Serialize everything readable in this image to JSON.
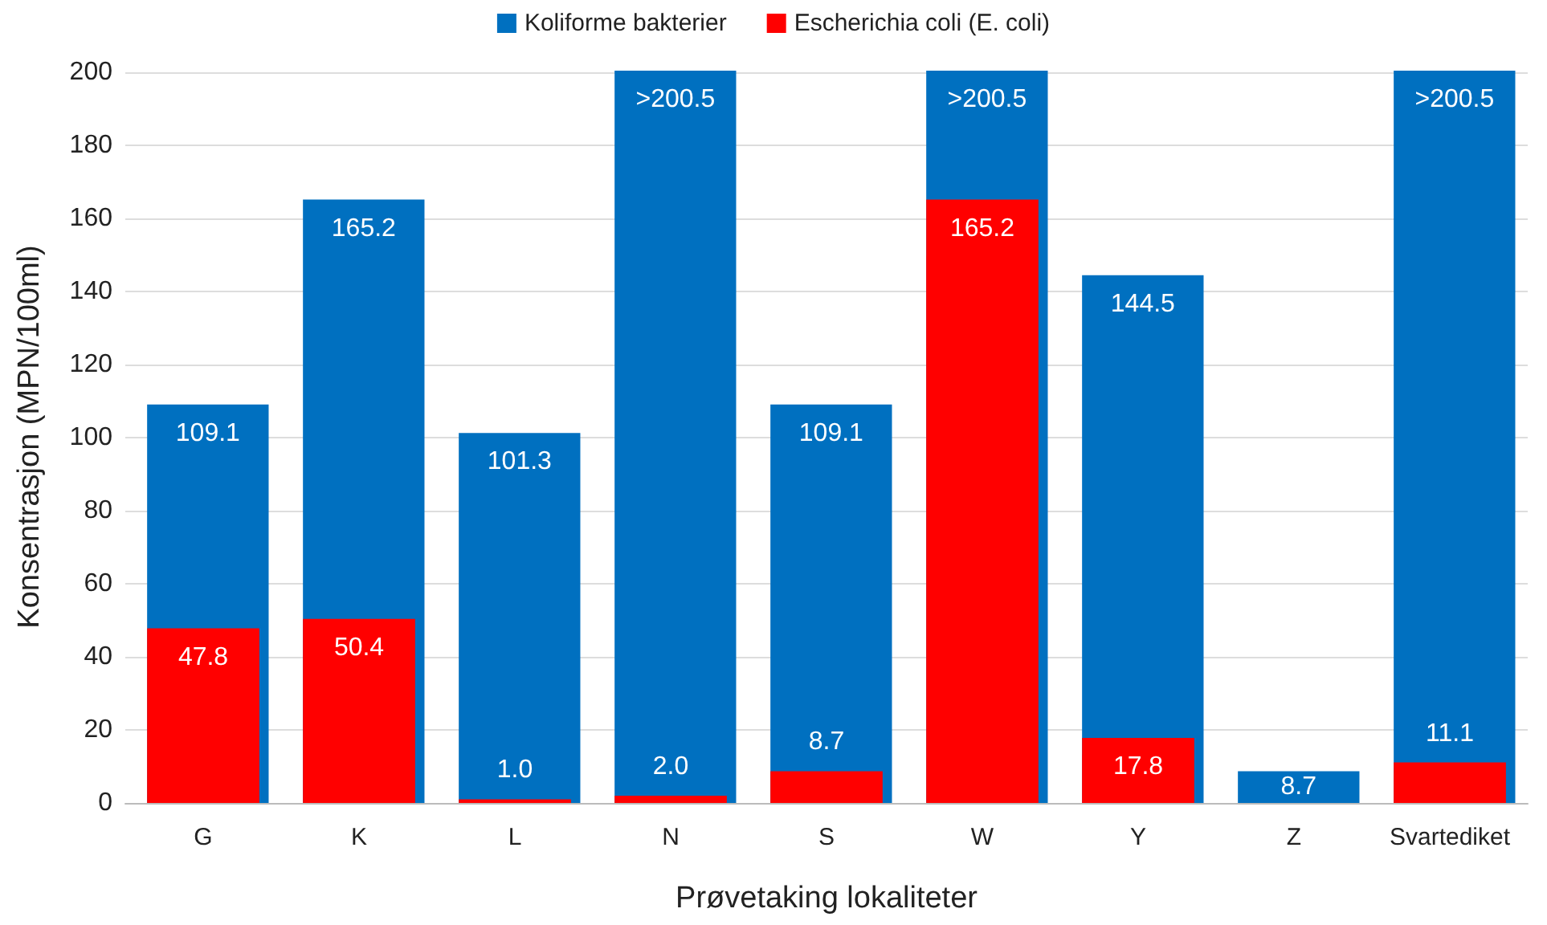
{
  "chart_data": {
    "type": "bar",
    "xlabel": "Prøvetaking lokaliteter",
    "ylabel": "Konsentrasjon (MPN/100ml)",
    "categories": [
      "G",
      "K",
      "L",
      "N",
      "S",
      "W",
      "Y",
      "Z",
      "Svartediket"
    ],
    "series": [
      {
        "name": "Koliforme bakterier",
        "color": "#0070c0",
        "values": [
          109.1,
          165.2,
          101.3,
          200.5,
          109.1,
          200.5,
          144.5,
          8.7,
          200.5
        ],
        "value_labels": [
          "109.1",
          "165.2",
          "101.3",
          ">200.5",
          "109.1",
          ">200.5",
          "144.5",
          "8.7",
          ">200.5"
        ]
      },
      {
        "name": "Escherichia coli (E. coli)",
        "color": "#ff0000",
        "values": [
          47.8,
          50.4,
          1.0,
          2.0,
          8.7,
          165.2,
          17.8,
          null,
          11.1
        ],
        "value_labels": [
          "47.8",
          "50.4",
          "1.0",
          "2.0",
          "8.7",
          "165.2",
          "17.8",
          null,
          "11.1"
        ]
      }
    ],
    "ylim": [
      0,
      200.5
    ],
    "yticks": [
      0,
      20,
      40,
      60,
      80,
      100,
      120,
      140,
      160,
      180,
      200
    ],
    "grid": "y",
    "legend": "top"
  }
}
